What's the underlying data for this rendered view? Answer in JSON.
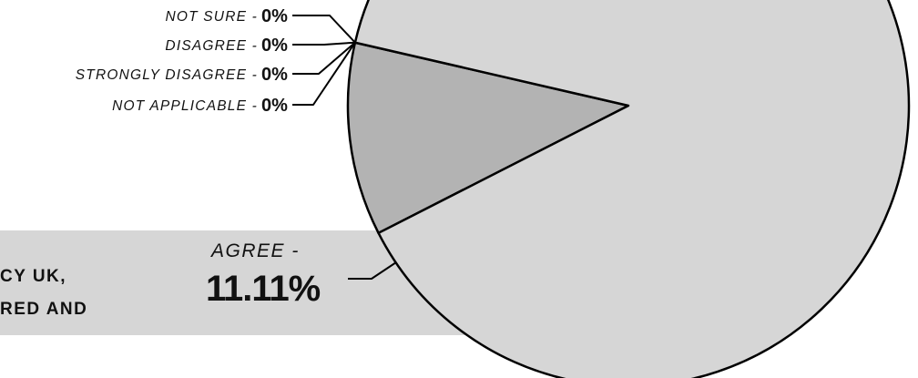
{
  "chart_data": {
    "type": "pie",
    "slices": [
      {
        "label": "AGREE -",
        "value": 11.11,
        "value_text": "11.11%",
        "color": "#b3b3b3"
      },
      {
        "label": "NOT SURE -",
        "value": 0,
        "value_text": "0%",
        "color": "#d6d6d6"
      },
      {
        "label": "DISAGREE -",
        "value": 0,
        "value_text": "0%",
        "color": "#d6d6d6"
      },
      {
        "label": "STRONGLY DISAGREE -",
        "value": 0,
        "value_text": "0%",
        "color": "#d6d6d6"
      },
      {
        "label": "NOT APPLICABLE -",
        "value": 0,
        "value_text": "0%",
        "color": "#d6d6d6"
      },
      {
        "label": "",
        "value": 88.89,
        "value_text": "",
        "color": "#d6d6d6"
      }
    ],
    "outline_color": "#000000",
    "band_color": "#d6d6d6"
  },
  "band_text": {
    "line1": "CY UK,",
    "line2": "RED AND"
  }
}
